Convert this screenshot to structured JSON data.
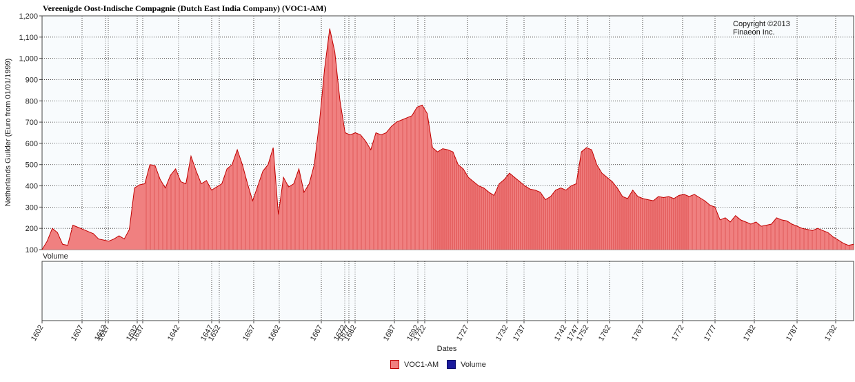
{
  "chart_data": {
    "type": "area",
    "title": "Vereenigde Oost-Indische Compagnie (Dutch East India Company) (VOC1-AM)",
    "ylabel": "Netherlands Guilder (Euro from 01/01/1999)",
    "xlabel": "Dates",
    "copyright": [
      "Copyright ©2013",
      "Finaeon Inc."
    ],
    "volume_label": "Volume",
    "ylim": [
      100,
      1200
    ],
    "yticks": [
      100,
      200,
      300,
      400,
      500,
      600,
      700,
      800,
      900,
      1000,
      1100,
      1200
    ],
    "ytick_labels": [
      "100",
      "200",
      "300",
      "400",
      "500",
      "600",
      "700",
      "800",
      "900",
      "1,000",
      "1,100",
      "1,200"
    ],
    "xtick_labels": [
      "1602",
      "1607",
      "1612",
      "1617",
      "1632",
      "1637",
      "1642",
      "1647",
      "1652",
      "1657",
      "1662",
      "1667",
      "1672",
      "1677",
      "1682",
      "1687",
      "1692",
      "1722",
      "1727",
      "1732",
      "1737",
      "1742",
      "1747",
      "1752",
      "1762",
      "1767",
      "1772",
      "1777",
      "1782",
      "1787",
      "1792"
    ],
    "grid": true,
    "legend_position": "bottom-center",
    "series": [
      {
        "name": "VOC1-AM",
        "color": "#f08080",
        "line_color": "#c00000",
        "values": [
          100,
          140,
          200,
          180,
          125,
          120,
          215,
          205,
          195,
          185,
          175,
          150,
          145,
          140,
          150,
          165,
          150,
          195,
          390,
          405,
          410,
          500,
          495,
          430,
          390,
          450,
          480,
          420,
          410,
          540,
          470,
          410,
          425,
          380,
          395,
          410,
          480,
          500,
          570,
          500,
          410,
          330,
          400,
          470,
          500,
          580,
          265,
          440,
          395,
          410,
          480,
          370,
          410,
          500,
          700,
          950,
          1140,
          1030,
          800,
          650,
          640,
          650,
          640,
          610,
          570,
          650,
          640,
          650,
          680,
          700,
          710,
          720,
          730,
          770,
          780,
          740,
          580,
          560,
          575,
          570,
          560,
          500,
          480,
          440,
          420,
          400,
          390,
          370,
          355,
          410,
          430,
          460,
          440,
          420,
          400,
          385,
          380,
          370,
          335,
          350,
          380,
          390,
          380,
          400,
          410,
          560,
          580,
          570,
          500,
          460,
          440,
          420,
          390,
          350,
          340,
          380,
          350,
          340,
          335,
          330,
          350,
          345,
          350,
          340,
          355,
          360,
          350,
          360,
          345,
          330,
          310,
          300,
          240,
          250,
          230,
          260,
          240,
          230,
          220,
          230,
          210,
          215,
          220,
          250,
          240,
          235,
          220,
          210,
          200,
          195,
          190,
          200,
          190,
          180,
          160,
          145,
          130,
          120,
          125
        ]
      },
      {
        "name": "Volume",
        "color": "#1a1a9c",
        "values": []
      }
    ]
  }
}
